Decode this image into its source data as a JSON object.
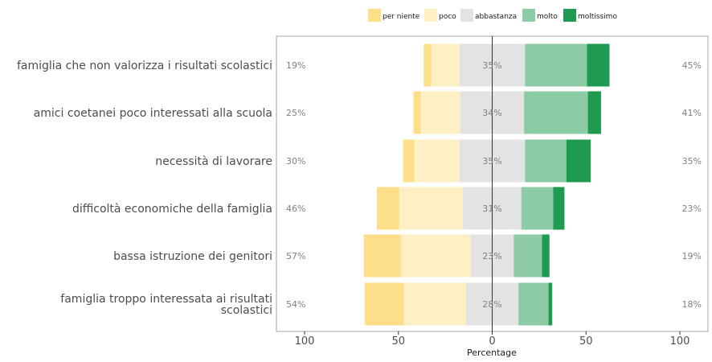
{
  "chart_data": {
    "type": "bar",
    "orientation": "horizontal",
    "stacking": "diverging",
    "xlabel": "Percentage",
    "xlim": [
      -115,
      115
    ],
    "xticks": [
      -100,
      -50,
      0,
      50,
      100
    ],
    "xtick_labels": [
      "100",
      "50",
      "0",
      "50",
      "100"
    ],
    "legend_position": "top",
    "levels": [
      {
        "name": "per niente",
        "color": "#FDDE89"
      },
      {
        "name": "poco",
        "color": "#FEEFC4"
      },
      {
        "name": "abbastanza",
        "color": "#E3E3E3"
      },
      {
        "name": "molto",
        "color": "#8CCBA6"
      },
      {
        "name": "moltissimo",
        "color": "#1E9A51"
      }
    ],
    "rows": [
      {
        "label": "famiglia che non valorizza i risultati scolastici",
        "values": [
          4,
          15,
          35,
          33,
          12
        ],
        "left_pct": "19%",
        "mid_pct": "35%",
        "right_pct": "45%"
      },
      {
        "label": "amici coetanei poco interessati alla scuola",
        "values": [
          4,
          21,
          34,
          34,
          7
        ],
        "left_pct": "25%",
        "mid_pct": "34%",
        "right_pct": "41%"
      },
      {
        "label": "necessità di lavorare",
        "values": [
          6,
          24,
          35,
          22,
          13
        ],
        "left_pct": "30%",
        "mid_pct": "35%",
        "right_pct": "35%"
      },
      {
        "label": "difficoltà economiche della famiglia",
        "values": [
          12,
          34,
          31,
          17,
          6
        ],
        "left_pct": "46%",
        "mid_pct": "31%",
        "right_pct": "23%"
      },
      {
        "label": "bassa istruzione dei genitori",
        "values": [
          20,
          37,
          23,
          15,
          4
        ],
        "left_pct": "57%",
        "mid_pct": "23%",
        "right_pct": "19%"
      },
      {
        "label": "famiglia troppo interessata ai risultati scolastici",
        "label_lines": [
          "famiglia troppo interessata ai risultati",
          "scolastici"
        ],
        "values": [
          21,
          33,
          28,
          16,
          2
        ],
        "left_pct": "54%",
        "mid_pct": "28%",
        "right_pct": "18%"
      }
    ]
  }
}
